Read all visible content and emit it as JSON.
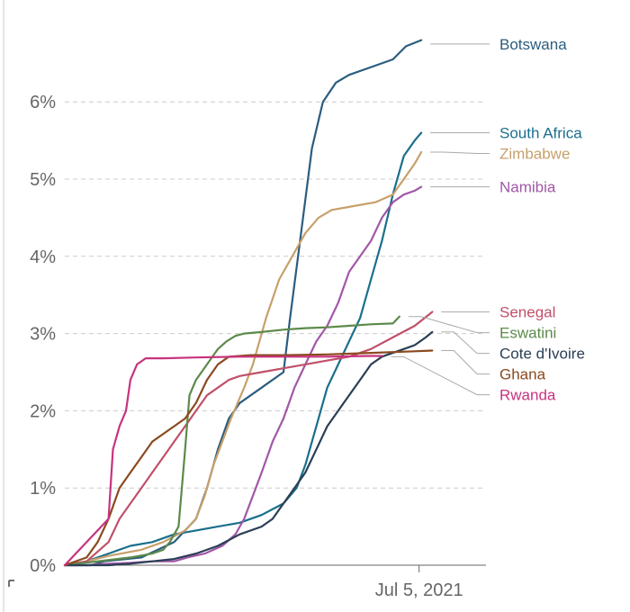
{
  "chart_data": {
    "type": "line",
    "title": "",
    "xlabel": "",
    "ylabel": "",
    "ylim": [
      0,
      6.8
    ],
    "y_ticks": [
      {
        "value": 0,
        "label": "0%"
      },
      {
        "value": 1,
        "label": "1%"
      },
      {
        "value": 2,
        "label": "2%"
      },
      {
        "value": 3,
        "label": "3%"
      },
      {
        "value": 4,
        "label": "4%"
      },
      {
        "value": 5,
        "label": "5%"
      },
      {
        "value": 6,
        "label": "6%"
      }
    ],
    "x_domain_days": [
      0,
      172
    ],
    "x_tick": {
      "day": 162,
      "label": "Jul 5, 2021"
    },
    "series": [
      {
        "name": "Botswana",
        "color": "#2b5d7f",
        "label_value": 6.75,
        "points": [
          [
            0,
            0
          ],
          [
            12,
            0
          ],
          [
            18,
            0.05
          ],
          [
            35,
            0.1
          ],
          [
            50,
            0.3
          ],
          [
            60,
            0.6
          ],
          [
            65,
            1.0
          ],
          [
            70,
            1.5
          ],
          [
            75,
            1.9
          ],
          [
            80,
            2.1
          ],
          [
            90,
            2.3
          ],
          [
            100,
            2.5
          ],
          [
            103,
            3.2
          ],
          [
            108,
            4.3
          ],
          [
            113,
            5.4
          ],
          [
            118,
            6.0
          ],
          [
            124,
            6.25
          ],
          [
            130,
            6.35
          ],
          [
            140,
            6.45
          ],
          [
            150,
            6.55
          ],
          [
            156,
            6.72
          ],
          [
            163,
            6.8
          ]
        ]
      },
      {
        "name": "South Africa",
        "color": "#1a6f8c",
        "label_value": 5.6,
        "points": [
          [
            0,
            0
          ],
          [
            10,
            0.05
          ],
          [
            20,
            0.15
          ],
          [
            30,
            0.25
          ],
          [
            40,
            0.3
          ],
          [
            50,
            0.4
          ],
          [
            60,
            0.45
          ],
          [
            70,
            0.5
          ],
          [
            80,
            0.55
          ],
          [
            90,
            0.65
          ],
          [
            100,
            0.8
          ],
          [
            106,
            1.0
          ],
          [
            110,
            1.3
          ],
          [
            115,
            1.8
          ],
          [
            120,
            2.3
          ],
          [
            125,
            2.6
          ],
          [
            130,
            2.9
          ],
          [
            135,
            3.2
          ],
          [
            140,
            3.7
          ],
          [
            145,
            4.2
          ],
          [
            150,
            4.8
          ],
          [
            155,
            5.3
          ],
          [
            160,
            5.5
          ],
          [
            163,
            5.6
          ]
        ]
      },
      {
        "name": "Zimbabwe",
        "color": "#c7a06b",
        "label_value": 5.35,
        "points": [
          [
            0,
            0
          ],
          [
            10,
            0.05
          ],
          [
            20,
            0.12
          ],
          [
            35,
            0.2
          ],
          [
            45,
            0.3
          ],
          [
            55,
            0.45
          ],
          [
            60,
            0.6
          ],
          [
            64,
            0.9
          ],
          [
            68,
            1.3
          ],
          [
            72,
            1.6
          ],
          [
            76,
            1.9
          ],
          [
            82,
            2.3
          ],
          [
            86,
            2.6
          ],
          [
            92,
            3.2
          ],
          [
            98,
            3.7
          ],
          [
            104,
            4.0
          ],
          [
            110,
            4.3
          ],
          [
            116,
            4.5
          ],
          [
            122,
            4.6
          ],
          [
            132,
            4.65
          ],
          [
            142,
            4.7
          ],
          [
            150,
            4.8
          ],
          [
            155,
            5.0
          ],
          [
            160,
            5.2
          ],
          [
            163,
            5.35
          ]
        ]
      },
      {
        "name": "Namibia",
        "color": "#a157a8",
        "label_value": 4.9,
        "points": [
          [
            0,
            0
          ],
          [
            10,
            0
          ],
          [
            20,
            0.02
          ],
          [
            30,
            0.03
          ],
          [
            40,
            0.05
          ],
          [
            50,
            0.05
          ],
          [
            56,
            0.1
          ],
          [
            64,
            0.15
          ],
          [
            72,
            0.25
          ],
          [
            78,
            0.4
          ],
          [
            82,
            0.6
          ],
          [
            86,
            0.9
          ],
          [
            90,
            1.2
          ],
          [
            95,
            1.6
          ],
          [
            100,
            1.9
          ],
          [
            105,
            2.3
          ],
          [
            110,
            2.6
          ],
          [
            115,
            2.9
          ],
          [
            120,
            3.1
          ],
          [
            125,
            3.4
          ],
          [
            130,
            3.8
          ],
          [
            135,
            4.0
          ],
          [
            140,
            4.2
          ],
          [
            145,
            4.5
          ],
          [
            150,
            4.7
          ],
          [
            155,
            4.8
          ],
          [
            160,
            4.85
          ],
          [
            163,
            4.9
          ]
        ]
      },
      {
        "name": "Senegal",
        "color": "#c0506a",
        "label_value": 3.28,
        "points": [
          [
            0,
            0
          ],
          [
            10,
            0.05
          ],
          [
            20,
            0.3
          ],
          [
            25,
            0.6
          ],
          [
            30,
            0.8
          ],
          [
            35,
            1.0
          ],
          [
            40,
            1.2
          ],
          [
            45,
            1.4
          ],
          [
            50,
            1.6
          ],
          [
            55,
            1.8
          ],
          [
            60,
            2.0
          ],
          [
            65,
            2.2
          ],
          [
            70,
            2.3
          ],
          [
            75,
            2.4
          ],
          [
            80,
            2.45
          ],
          [
            90,
            2.5
          ],
          [
            100,
            2.55
          ],
          [
            110,
            2.6
          ],
          [
            120,
            2.65
          ],
          [
            130,
            2.7
          ],
          [
            140,
            2.8
          ],
          [
            150,
            2.95
          ],
          [
            160,
            3.1
          ],
          [
            168,
            3.28
          ]
        ]
      },
      {
        "name": "Eswatini",
        "color": "#5c8a4a",
        "label_value": 3.22,
        "points": [
          [
            0,
            0
          ],
          [
            15,
            0.05
          ],
          [
            30,
            0.1
          ],
          [
            40,
            0.15
          ],
          [
            45,
            0.2
          ],
          [
            48,
            0.3
          ],
          [
            52,
            0.5
          ],
          [
            55,
            1.5
          ],
          [
            57,
            2.2
          ],
          [
            60,
            2.4
          ],
          [
            65,
            2.6
          ],
          [
            70,
            2.8
          ],
          [
            74,
            2.9
          ],
          [
            78,
            2.97
          ],
          [
            82,
            3.0
          ],
          [
            90,
            3.02
          ],
          [
            100,
            3.05
          ],
          [
            110,
            3.07
          ],
          [
            120,
            3.08
          ],
          [
            130,
            3.1
          ],
          [
            140,
            3.12
          ],
          [
            150,
            3.13
          ],
          [
            153,
            3.22
          ]
        ]
      },
      {
        "name": "Cote d'Ivoire",
        "color": "#2a3f55",
        "label_value": 3.02,
        "points": [
          [
            0,
            0
          ],
          [
            20,
            0
          ],
          [
            30,
            0.02
          ],
          [
            40,
            0.05
          ],
          [
            50,
            0.08
          ],
          [
            60,
            0.15
          ],
          [
            70,
            0.25
          ],
          [
            80,
            0.4
          ],
          [
            90,
            0.5
          ],
          [
            95,
            0.6
          ],
          [
            100,
            0.8
          ],
          [
            105,
            1.0
          ],
          [
            110,
            1.2
          ],
          [
            115,
            1.5
          ],
          [
            120,
            1.8
          ],
          [
            125,
            2.0
          ],
          [
            130,
            2.2
          ],
          [
            135,
            2.4
          ],
          [
            140,
            2.6
          ],
          [
            145,
            2.7
          ],
          [
            150,
            2.75
          ],
          [
            155,
            2.8
          ],
          [
            160,
            2.85
          ],
          [
            165,
            2.95
          ],
          [
            168,
            3.02
          ]
        ]
      },
      {
        "name": "Ghana",
        "color": "#8b4a1f",
        "label_value": 2.78,
        "points": [
          [
            0,
            0
          ],
          [
            10,
            0.1
          ],
          [
            15,
            0.3
          ],
          [
            20,
            0.6
          ],
          [
            25,
            1.0
          ],
          [
            30,
            1.2
          ],
          [
            35,
            1.4
          ],
          [
            40,
            1.6
          ],
          [
            45,
            1.7
          ],
          [
            50,
            1.8
          ],
          [
            55,
            1.9
          ],
          [
            60,
            2.1
          ],
          [
            65,
            2.4
          ],
          [
            70,
            2.6
          ],
          [
            75,
            2.7
          ],
          [
            85,
            2.72
          ],
          [
            100,
            2.72
          ],
          [
            120,
            2.73
          ],
          [
            140,
            2.75
          ],
          [
            160,
            2.77
          ],
          [
            168,
            2.78
          ]
        ]
      },
      {
        "name": "Rwanda",
        "color": "#c8337e",
        "label_value": 2.7,
        "points": [
          [
            0,
            0
          ],
          [
            10,
            0.3
          ],
          [
            20,
            0.6
          ],
          [
            22,
            1.5
          ],
          [
            25,
            1.8
          ],
          [
            28,
            2.0
          ],
          [
            30,
            2.4
          ],
          [
            33,
            2.6
          ],
          [
            37,
            2.68
          ],
          [
            45,
            2.68
          ],
          [
            60,
            2.69
          ],
          [
            80,
            2.7
          ],
          [
            100,
            2.7
          ],
          [
            120,
            2.7
          ],
          [
            140,
            2.71
          ],
          [
            145,
            2.71
          ]
        ]
      }
    ]
  }
}
